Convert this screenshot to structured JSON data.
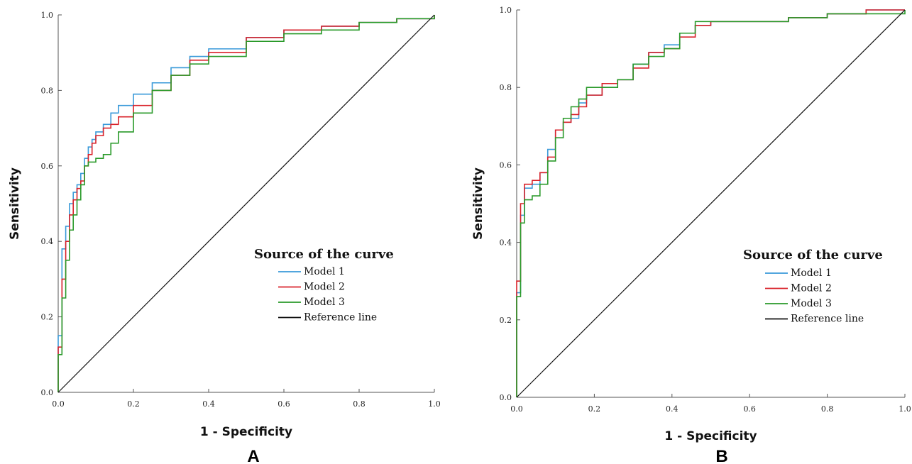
{
  "chart_data": [
    {
      "type": "line",
      "panel": "A",
      "xlabel": "1 - Specificity",
      "ylabel": "Sensitivity",
      "xlim": [
        0,
        1
      ],
      "ylim": [
        0,
        1
      ],
      "xticks": [
        "0.0",
        "0.2",
        "0.4",
        "0.6",
        "0.8",
        "1.0"
      ],
      "yticks": [
        "0.0",
        "0.2",
        "0.4",
        "0.6",
        "0.8",
        "1.0"
      ],
      "legend_title": "Source of the curve",
      "legend_position": "bottom-right",
      "grid": false,
      "series": [
        {
          "name": "Model 1",
          "color": "#3a9ad9",
          "x": [
            0.0,
            0.0,
            0.01,
            0.02,
            0.03,
            0.04,
            0.05,
            0.06,
            0.07,
            0.08,
            0.09,
            0.1,
            0.12,
            0.14,
            0.16,
            0.2,
            0.25,
            0.3,
            0.35,
            0.4,
            0.5,
            0.6,
            0.7,
            0.8,
            0.9,
            1.0
          ],
          "y": [
            0.0,
            0.15,
            0.38,
            0.44,
            0.5,
            0.53,
            0.55,
            0.58,
            0.62,
            0.65,
            0.67,
            0.69,
            0.71,
            0.74,
            0.76,
            0.79,
            0.82,
            0.86,
            0.89,
            0.91,
            0.94,
            0.96,
            0.97,
            0.98,
            0.99,
            1.0
          ]
        },
        {
          "name": "Model 2",
          "color": "#d9222a",
          "x": [
            0.0,
            0.0,
            0.01,
            0.02,
            0.03,
            0.04,
            0.05,
            0.06,
            0.07,
            0.08,
            0.09,
            0.1,
            0.12,
            0.14,
            0.16,
            0.2,
            0.25,
            0.3,
            0.35,
            0.4,
            0.5,
            0.6,
            0.7,
            0.8,
            0.9,
            1.0
          ],
          "y": [
            0.0,
            0.12,
            0.3,
            0.4,
            0.47,
            0.51,
            0.54,
            0.56,
            0.6,
            0.63,
            0.66,
            0.68,
            0.7,
            0.71,
            0.73,
            0.76,
            0.8,
            0.84,
            0.88,
            0.9,
            0.94,
            0.96,
            0.97,
            0.98,
            0.99,
            1.0
          ]
        },
        {
          "name": "Model 3",
          "color": "#2a9a2a",
          "x": [
            0.0,
            0.0,
            0.01,
            0.02,
            0.03,
            0.04,
            0.05,
            0.06,
            0.07,
            0.08,
            0.1,
            0.12,
            0.14,
            0.16,
            0.2,
            0.25,
            0.3,
            0.35,
            0.4,
            0.5,
            0.6,
            0.7,
            0.8,
            0.9,
            1.0
          ],
          "y": [
            0.0,
            0.1,
            0.25,
            0.35,
            0.43,
            0.47,
            0.51,
            0.55,
            0.6,
            0.61,
            0.62,
            0.63,
            0.66,
            0.69,
            0.74,
            0.8,
            0.84,
            0.87,
            0.89,
            0.93,
            0.95,
            0.96,
            0.98,
            0.99,
            1.0
          ]
        },
        {
          "name": "Reference line",
          "color": "#111111",
          "x": [
            0.0,
            1.0
          ],
          "y": [
            0.0,
            1.0
          ]
        }
      ]
    },
    {
      "type": "line",
      "panel": "B",
      "xlabel": "1 - Specificity",
      "ylabel": "Sensitivity",
      "xlim": [
        0,
        1
      ],
      "ylim": [
        0,
        1
      ],
      "xticks": [
        "0.0",
        "0.2",
        "0.4",
        "0.6",
        "0.8",
        "1.0"
      ],
      "yticks": [
        "0.0",
        "0.2",
        "0.4",
        "0.6",
        "0.8",
        "1.0"
      ],
      "legend_title": "Source of the curve",
      "legend_position": "bottom-right",
      "grid": false,
      "series": [
        {
          "name": "Model 1",
          "color": "#3a9ad9",
          "x": [
            0.0,
            0.0,
            0.01,
            0.02,
            0.04,
            0.06,
            0.08,
            0.1,
            0.12,
            0.14,
            0.16,
            0.18,
            0.22,
            0.26,
            0.3,
            0.34,
            0.38,
            0.42,
            0.46,
            0.5,
            0.6,
            0.7,
            0.8,
            0.9,
            1.0
          ],
          "y": [
            0.0,
            0.27,
            0.47,
            0.54,
            0.55,
            0.58,
            0.64,
            0.69,
            0.71,
            0.72,
            0.76,
            0.78,
            0.8,
            0.82,
            0.86,
            0.89,
            0.91,
            0.94,
            0.96,
            0.97,
            0.97,
            0.98,
            0.99,
            1.0,
            1.0
          ]
        },
        {
          "name": "Model 2",
          "color": "#d9222a",
          "x": [
            0.0,
            0.0,
            0.01,
            0.02,
            0.04,
            0.06,
            0.08,
            0.1,
            0.12,
            0.14,
            0.16,
            0.18,
            0.22,
            0.26,
            0.3,
            0.34,
            0.38,
            0.42,
            0.46,
            0.5,
            0.6,
            0.7,
            0.8,
            0.9,
            1.0
          ],
          "y": [
            0.0,
            0.3,
            0.5,
            0.55,
            0.56,
            0.58,
            0.62,
            0.69,
            0.71,
            0.73,
            0.75,
            0.78,
            0.81,
            0.82,
            0.85,
            0.89,
            0.9,
            0.93,
            0.96,
            0.97,
            0.97,
            0.98,
            0.99,
            1.0,
            1.0
          ]
        },
        {
          "name": "Model 3",
          "color": "#2a9a2a",
          "x": [
            0.0,
            0.0,
            0.01,
            0.02,
            0.04,
            0.06,
            0.08,
            0.1,
            0.12,
            0.14,
            0.16,
            0.18,
            0.22,
            0.26,
            0.3,
            0.34,
            0.38,
            0.42,
            0.46,
            0.5,
            0.6,
            0.7,
            0.8,
            0.9,
            1.0
          ],
          "y": [
            0.0,
            0.26,
            0.45,
            0.51,
            0.52,
            0.55,
            0.61,
            0.67,
            0.72,
            0.75,
            0.77,
            0.8,
            0.8,
            0.82,
            0.86,
            0.88,
            0.9,
            0.94,
            0.97,
            0.97,
            0.97,
            0.98,
            0.99,
            0.99,
            1.0
          ]
        },
        {
          "name": "Reference line",
          "color": "#111111",
          "x": [
            0.0,
            1.0
          ],
          "y": [
            0.0,
            1.0
          ]
        }
      ]
    }
  ]
}
